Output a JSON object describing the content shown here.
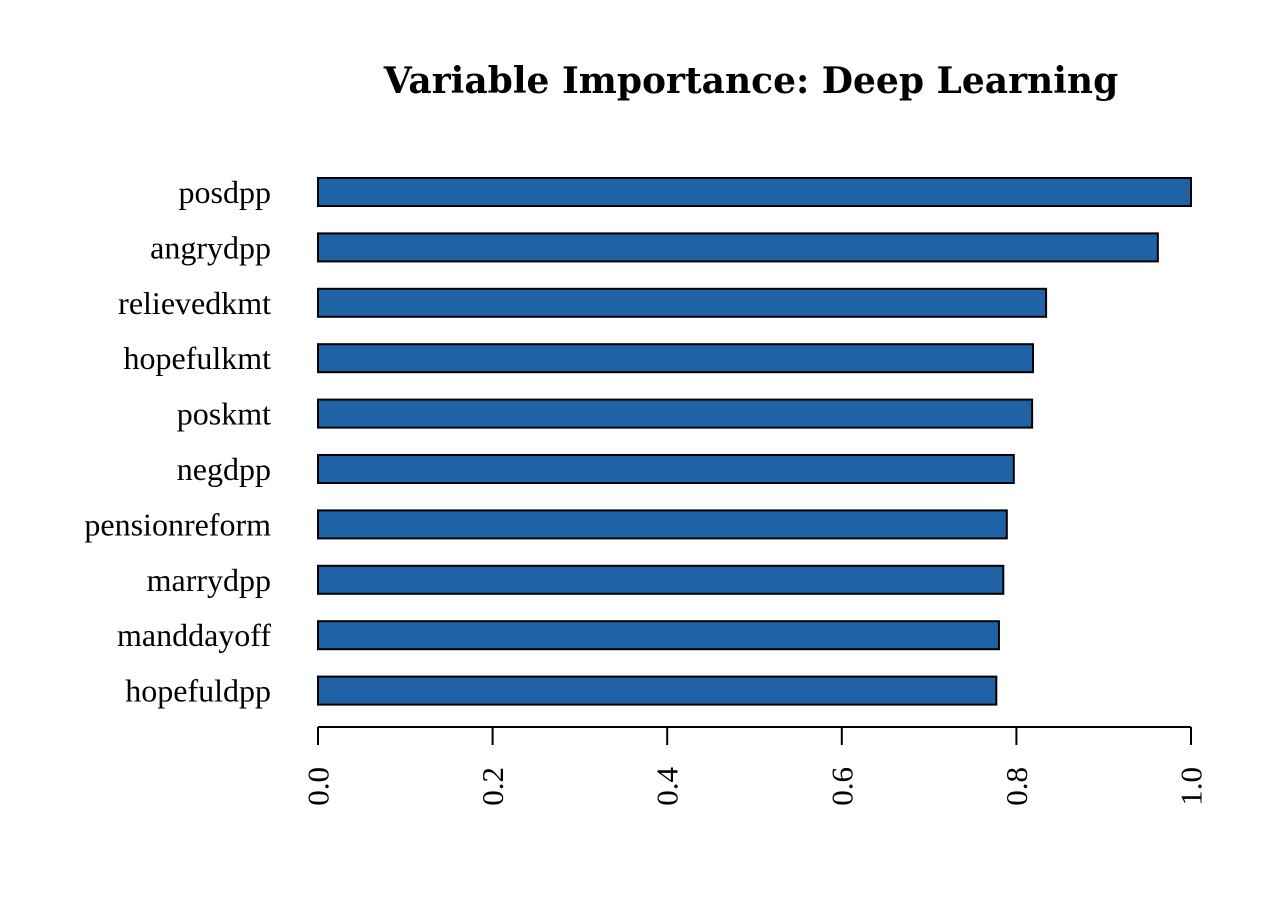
{
  "chart_data": {
    "type": "bar",
    "orientation": "horizontal",
    "title": "Variable Importance: Deep Learning",
    "xlabel": "",
    "ylabel": "",
    "categories": [
      "posdpp",
      "angrydpp",
      "relievedkmt",
      "hopefulkmt",
      "poskmt",
      "negdpp",
      "pensionreform",
      "marrydpp",
      "manddayoff",
      "hopefuldpp"
    ],
    "values": [
      1.0,
      0.962,
      0.834,
      0.819,
      0.818,
      0.797,
      0.789,
      0.785,
      0.78,
      0.777
    ],
    "xlim": [
      0,
      1.0
    ],
    "ticks": [
      0.0,
      0.2,
      0.4,
      0.6,
      0.8,
      1.0
    ],
    "tick_labels": [
      "0.0",
      "0.2",
      "0.4",
      "0.6",
      "0.8",
      "1.0"
    ],
    "bar_color": "#1f63a6",
    "grid": false,
    "legend": "none"
  }
}
